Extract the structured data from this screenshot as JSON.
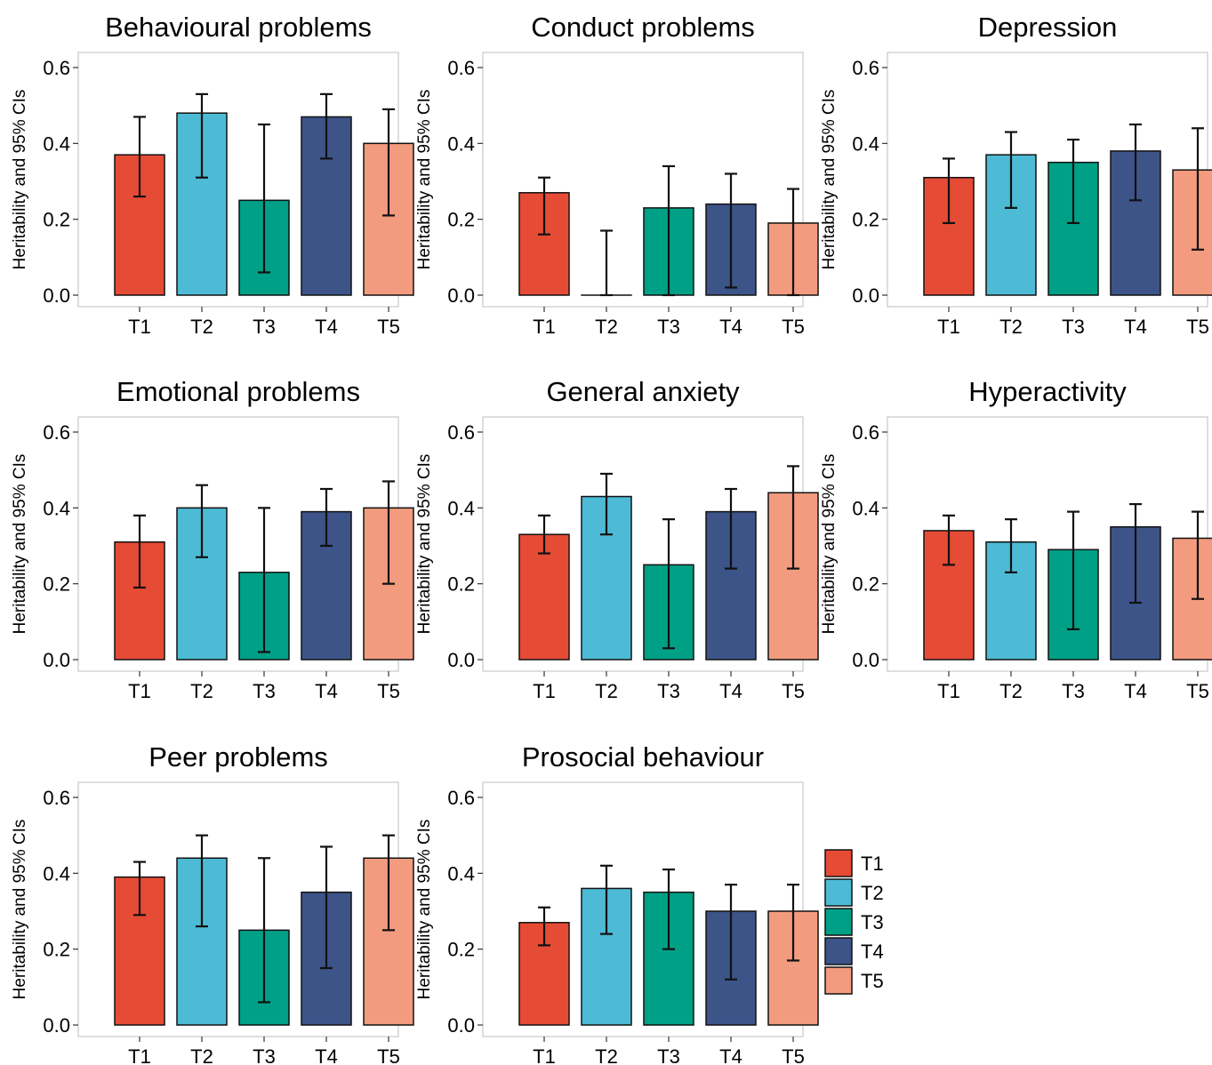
{
  "colors": {
    "T1": "#E64B35",
    "T2": "#4DBBD5",
    "T3": "#00A087",
    "T4": "#3C5488",
    "T5": "#F39B7F"
  },
  "legend": {
    "position": "bottom-right",
    "entries": [
      "T1",
      "T2",
      "T3",
      "T4",
      "T5"
    ]
  },
  "chart_data": [
    {
      "type": "bar",
      "title": "Behavioural problems",
      "ylabel": "Heritability and 95% CIs",
      "categories": [
        "T1",
        "T2",
        "T3",
        "T4",
        "T5"
      ],
      "ylim": [
        0,
        0.6
      ],
      "yticks": [
        "0.0",
        "0.2",
        "0.4",
        "0.6"
      ],
      "values": [
        0.37,
        0.48,
        0.25,
        0.47,
        0.4
      ],
      "ci_low": [
        0.26,
        0.31,
        0.06,
        0.36,
        0.21
      ],
      "ci_high": [
        0.47,
        0.53,
        0.45,
        0.53,
        0.49
      ]
    },
    {
      "type": "bar",
      "title": "Conduct problems",
      "ylabel": "Heritability and 95% CIs",
      "categories": [
        "T1",
        "T2",
        "T3",
        "T4",
        "T5"
      ],
      "ylim": [
        0,
        0.6
      ],
      "yticks": [
        "0.0",
        "0.2",
        "0.4",
        "0.6"
      ],
      "values": [
        0.27,
        0.0,
        0.23,
        0.24,
        0.19
      ],
      "ci_low": [
        0.16,
        0.0,
        0.0,
        0.02,
        0.0
      ],
      "ci_high": [
        0.31,
        0.17,
        0.34,
        0.32,
        0.28
      ]
    },
    {
      "type": "bar",
      "title": "Depression",
      "ylabel": "Heritability and 95% CIs",
      "categories": [
        "T1",
        "T2",
        "T3",
        "T4",
        "T5"
      ],
      "ylim": [
        0,
        0.6
      ],
      "yticks": [
        "0.0",
        "0.2",
        "0.4",
        "0.6"
      ],
      "values": [
        0.31,
        0.37,
        0.35,
        0.38,
        0.33
      ],
      "ci_low": [
        0.19,
        0.23,
        0.19,
        0.25,
        0.12
      ],
      "ci_high": [
        0.36,
        0.43,
        0.41,
        0.45,
        0.44
      ]
    },
    {
      "type": "bar",
      "title": "Emotional problems",
      "ylabel": "Heritability and 95% CIs",
      "categories": [
        "T1",
        "T2",
        "T3",
        "T4",
        "T5"
      ],
      "ylim": [
        0,
        0.6
      ],
      "yticks": [
        "0.0",
        "0.2",
        "0.4",
        "0.6"
      ],
      "values": [
        0.31,
        0.4,
        0.23,
        0.39,
        0.4
      ],
      "ci_low": [
        0.19,
        0.27,
        0.02,
        0.3,
        0.2
      ],
      "ci_high": [
        0.38,
        0.46,
        0.4,
        0.45,
        0.47
      ]
    },
    {
      "type": "bar",
      "title": "General anxiety",
      "ylabel": "Heritability and 95% CIs",
      "categories": [
        "T1",
        "T2",
        "T3",
        "T4",
        "T5"
      ],
      "ylim": [
        0,
        0.6
      ],
      "yticks": [
        "0.0",
        "0.2",
        "0.4",
        "0.6"
      ],
      "values": [
        0.33,
        0.43,
        0.25,
        0.39,
        0.44
      ],
      "ci_low": [
        0.28,
        0.33,
        0.03,
        0.24,
        0.24
      ],
      "ci_high": [
        0.38,
        0.49,
        0.37,
        0.45,
        0.51
      ]
    },
    {
      "type": "bar",
      "title": "Hyperactivity",
      "ylabel": "Heritability and 95% CIs",
      "categories": [
        "T1",
        "T2",
        "T3",
        "T4",
        "T5"
      ],
      "ylim": [
        0,
        0.6
      ],
      "yticks": [
        "0.0",
        "0.2",
        "0.4",
        "0.6"
      ],
      "values": [
        0.34,
        0.31,
        0.29,
        0.35,
        0.32
      ],
      "ci_low": [
        0.25,
        0.23,
        0.08,
        0.15,
        0.16
      ],
      "ci_high": [
        0.38,
        0.37,
        0.39,
        0.41,
        0.39
      ]
    },
    {
      "type": "bar",
      "title": "Peer problems",
      "ylabel": "Heritability and 95% CIs",
      "categories": [
        "T1",
        "T2",
        "T3",
        "T4",
        "T5"
      ],
      "ylim": [
        0,
        0.6
      ],
      "yticks": [
        "0.0",
        "0.2",
        "0.4",
        "0.6"
      ],
      "values": [
        0.39,
        0.44,
        0.25,
        0.35,
        0.44
      ],
      "ci_low": [
        0.29,
        0.26,
        0.06,
        0.15,
        0.25
      ],
      "ci_high": [
        0.43,
        0.5,
        0.44,
        0.47,
        0.5
      ]
    },
    {
      "type": "bar",
      "title": "Prosocial behaviour",
      "ylabel": "Heritability and 95% CIs",
      "categories": [
        "T1",
        "T2",
        "T3",
        "T4",
        "T5"
      ],
      "ylim": [
        0,
        0.6
      ],
      "yticks": [
        "0.0",
        "0.2",
        "0.4",
        "0.6"
      ],
      "values": [
        0.27,
        0.36,
        0.35,
        0.3,
        0.3
      ],
      "ci_low": [
        0.21,
        0.24,
        0.2,
        0.12,
        0.17
      ],
      "ci_high": [
        0.31,
        0.42,
        0.41,
        0.37,
        0.37
      ]
    }
  ]
}
